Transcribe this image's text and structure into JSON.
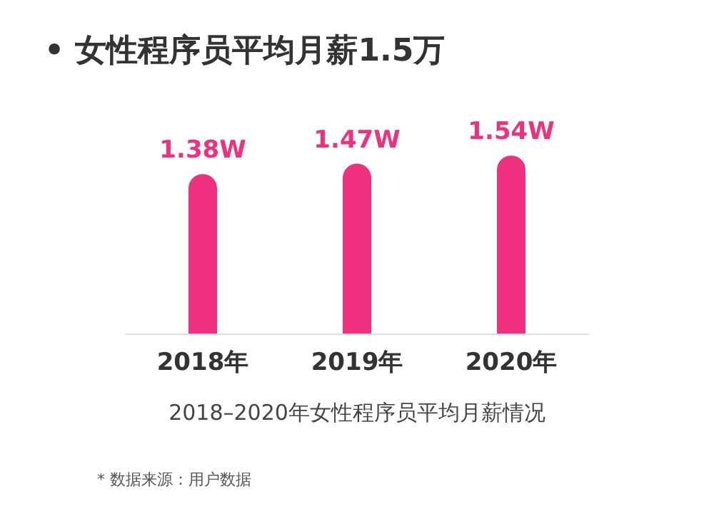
{
  "chart_data": {
    "type": "bar",
    "title": "• 女性程序员平均月薪1.5万",
    "xlabel": "2018–2020年女性程序员平均月薪情况",
    "categories": [
      "2018年",
      "2019年",
      "2020年"
    ],
    "values": [
      1.38,
      1.47,
      1.54
    ],
    "value_labels": [
      "1.38W",
      "1.47W",
      "1.54W"
    ],
    "color": "#f0307e",
    "annotations": [
      "* 数据来源：用户数据"
    ]
  }
}
